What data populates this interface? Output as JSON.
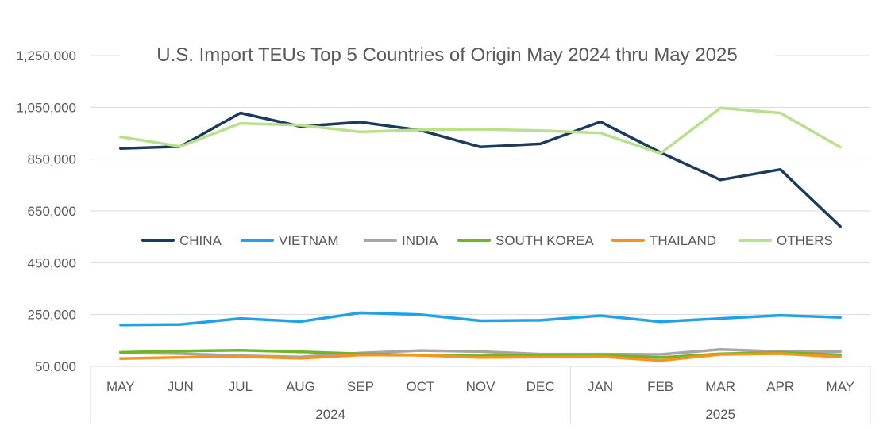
{
  "chart_data": {
    "type": "line",
    "title": "U.S. Import TEUs Top 5 Countries of Origin May 2024 thru May 2025",
    "categories": [
      "MAY",
      "JUN",
      "JUL",
      "AUG",
      "SEP",
      "OCT",
      "NOV",
      "DEC",
      "JAN",
      "FEB",
      "MAR",
      "APR",
      "MAY"
    ],
    "groups": [
      {
        "label": "2024",
        "start": 0,
        "end": 7
      },
      {
        "label": "2025",
        "start": 8,
        "end": 12
      }
    ],
    "yticks": [
      "1,250,000",
      "1,050,000",
      "850,000",
      "650,000",
      "450,000",
      "250,000",
      "50,000"
    ],
    "ytick_values": [
      1250000,
      1050000,
      850000,
      650000,
      450000,
      250000,
      50000
    ],
    "ylim": [
      50000,
      1250000
    ],
    "grid": true,
    "legend_position": "middle",
    "series": [
      {
        "name": "CHINA",
        "color": "#1b3a5c",
        "values": [
          891000,
          899000,
          1028000,
          976000,
          993000,
          961000,
          897000,
          909000,
          994000,
          876000,
          770000,
          810000,
          590000
        ]
      },
      {
        "name": "VIETNAM",
        "color": "#1fa2e8",
        "values": [
          210000,
          212000,
          235000,
          223000,
          257000,
          250000,
          226000,
          228000,
          246000,
          222000,
          235000,
          247000,
          239000
        ]
      },
      {
        "name": "INDIA",
        "color": "#a6a6a6",
        "values": [
          103000,
          99000,
          91000,
          86000,
          101000,
          111000,
          107000,
          97000,
          97000,
          96000,
          115000,
          107000,
          107000
        ]
      },
      {
        "name": "SOUTH KOREA",
        "color": "#6fb52c",
        "values": [
          104000,
          109000,
          112000,
          106000,
          98000,
          93000,
          90000,
          93000,
          93000,
          84000,
          98000,
          104000,
          94000
        ]
      },
      {
        "name": "THAILAND",
        "color": "#f7941d",
        "values": [
          80000,
          85000,
          88000,
          81000,
          94000,
          93000,
          84000,
          86000,
          88000,
          72000,
          96000,
          99000,
          86000
        ]
      },
      {
        "name": "OTHERS",
        "color": "#b9e08c",
        "values": [
          936000,
          899000,
          988000,
          981000,
          955000,
          963000,
          965000,
          960000,
          951000,
          872000,
          1047000,
          1028000,
          896000
        ]
      }
    ]
  }
}
